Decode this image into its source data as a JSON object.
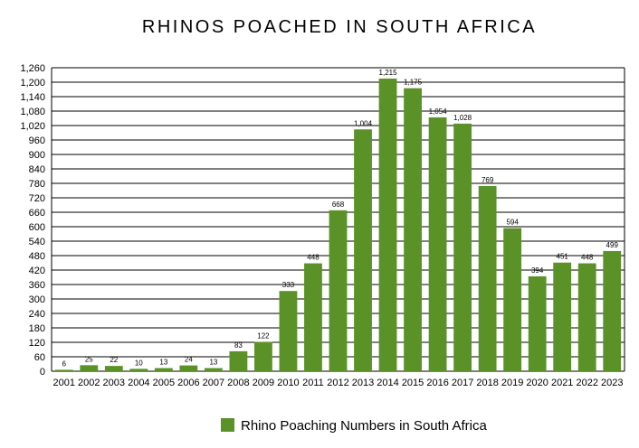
{
  "chart_data": {
    "type": "bar",
    "title": "RHINOS POACHED IN SOUTH AFRICA",
    "xlabel": "",
    "ylabel": "",
    "categories": [
      "2001",
      "2002",
      "2003",
      "2004",
      "2005",
      "2006",
      "2007",
      "2008",
      "2009",
      "2010",
      "2011",
      "2012",
      "2013",
      "2014",
      "2015",
      "2016",
      "2017",
      "2018",
      "2019",
      "2020",
      "2021",
      "2022",
      "2023"
    ],
    "series": [
      {
        "name": "Rhino Poaching Numbers in South Africa",
        "values": [
          6,
          25,
          22,
          10,
          13,
          24,
          13,
          83,
          122,
          333,
          448,
          668,
          1004,
          1215,
          1175,
          1054,
          1028,
          769,
          594,
          394,
          451,
          448,
          499
        ],
        "data_labels": [
          "6",
          "25",
          "22",
          "10",
          "13",
          "24",
          "13",
          "83",
          "122",
          "333",
          "448",
          "668",
          "1,004",
          "1,215",
          "1,175",
          "1,054",
          "1,028",
          "769",
          "594",
          "394",
          "451",
          "448",
          "499"
        ],
        "color": "#5b9228"
      }
    ],
    "ylim": [
      0,
      1260
    ],
    "y_ticks": [
      "0",
      "60",
      "120",
      "180",
      "240",
      "300",
      "360",
      "420",
      "480",
      "540",
      "600",
      "660",
      "720",
      "780",
      "840",
      "900",
      "960",
      "1,020",
      "1,080",
      "1,140",
      "1,200",
      "1,260"
    ],
    "y_tick_values": [
      0,
      60,
      120,
      180,
      240,
      300,
      360,
      420,
      480,
      540,
      600,
      660,
      720,
      780,
      840,
      900,
      960,
      1020,
      1080,
      1140,
      1200,
      1260
    ],
    "grid": true,
    "legend": "bottom"
  }
}
